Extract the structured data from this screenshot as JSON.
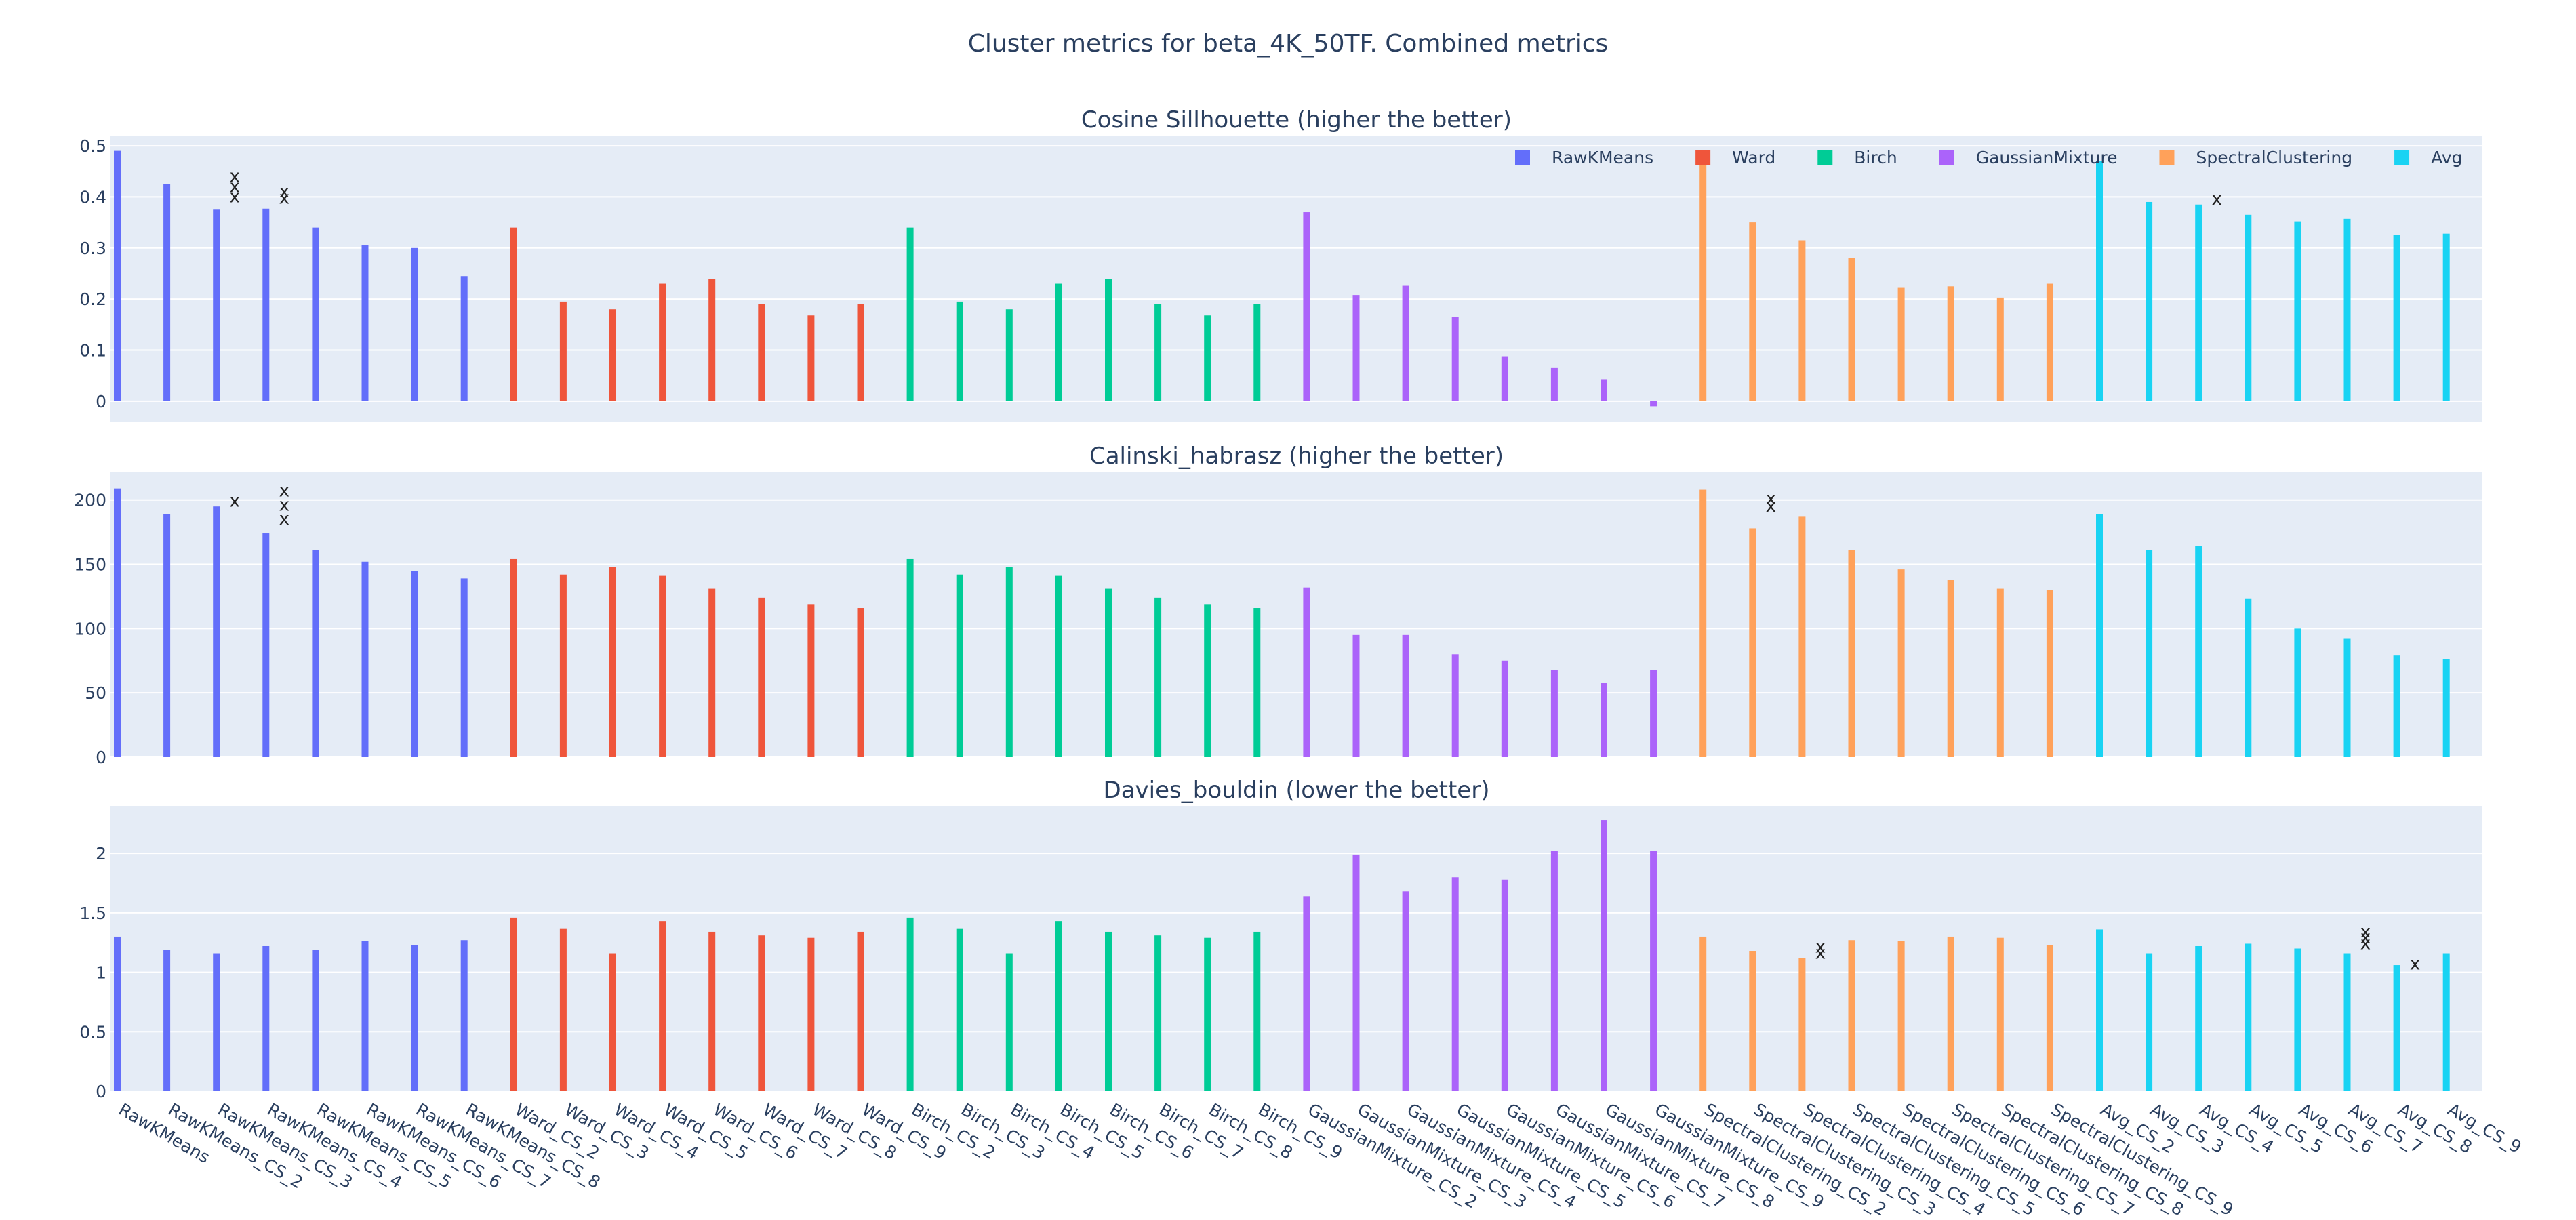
{
  "title": "Cluster metrics for beta_4K_50TF. Combined metrics",
  "chart_data": {
    "type": "bar",
    "legend_placement": "top-right",
    "grid": true,
    "categories": [
      "RawKMeans",
      "RawKMeans_CS_2",
      "RawKMeans_CS_3",
      "RawKMeans_CS_4",
      "RawKMeans_CS_5",
      "RawKMeans_CS_6",
      "RawKMeans_CS_7",
      "RawKMeans_CS_8",
      "Ward_CS_2",
      "Ward_CS_3",
      "Ward_CS_4",
      "Ward_CS_5",
      "Ward_CS_6",
      "Ward_CS_7",
      "Ward_CS_8",
      "Ward_CS_9",
      "Birch_CS_2",
      "Birch_CS_3",
      "Birch_CS_4",
      "Birch_CS_5",
      "Birch_CS_6",
      "Birch_CS_7",
      "Birch_CS_8",
      "Birch_CS_9",
      "GaussianMixture_CS_2",
      "GaussianMixture_CS_3",
      "GaussianMixture_CS_4",
      "GaussianMixture_CS_5",
      "GaussianMixture_CS_6",
      "GaussianMixture_CS_7",
      "GaussianMixture_CS_8",
      "GaussianMixture_CS_9",
      "SpectralClustering_CS_2",
      "SpectralClustering_CS_3",
      "SpectralClustering_CS_4",
      "SpectralClustering_CS_5",
      "SpectralClustering_CS_6",
      "SpectralClustering_CS_7",
      "SpectralClustering_CS_8",
      "SpectralClustering_CS_9",
      "Avg_CS_2",
      "Avg_CS_3",
      "Avg_CS_4",
      "Avg_CS_5",
      "Avg_CS_6",
      "Avg_CS_7",
      "Avg_CS_8",
      "Avg_CS_9"
    ],
    "series": [
      {
        "name": "RawKMeans",
        "color": "#636efa",
        "start": 0,
        "count": 8
      },
      {
        "name": "Ward",
        "color": "#ef553b",
        "start": 8,
        "count": 8
      },
      {
        "name": "Birch",
        "color": "#00cc96",
        "start": 16,
        "count": 8
      },
      {
        "name": "GaussianMixture",
        "color": "#ab63fa",
        "start": 24,
        "count": 8
      },
      {
        "name": "SpectralClustering",
        "color": "#ffa15a",
        "start": 32,
        "count": 8
      },
      {
        "name": "Avg",
        "color": "#19d3f3",
        "start": 40,
        "count": 8
      }
    ],
    "marker_symbol": "x",
    "subplots": [
      {
        "title": "Cosine Sillhouette (higher the better)",
        "ylim": [
          -0.04,
          0.52
        ],
        "yticks": [
          0,
          0.1,
          0.2,
          0.3,
          0.4,
          0.5
        ],
        "ytick_labels": [
          "0",
          "0.1",
          "0.2",
          "0.3",
          "0.4",
          "0.5"
        ],
        "values": [
          0.49,
          0.425,
          0.375,
          0.377,
          0.34,
          0.305,
          0.3,
          0.245,
          0.34,
          0.195,
          0.18,
          0.23,
          0.24,
          0.19,
          0.168,
          0.19,
          0.34,
          0.195,
          0.18,
          0.23,
          0.24,
          0.19,
          0.168,
          0.19,
          0.37,
          0.208,
          0.226,
          0.165,
          0.088,
          0.065,
          0.043,
          -0.01,
          0.485,
          0.35,
          0.315,
          0.28,
          0.222,
          0.225,
          0.203,
          0.23,
          0.47,
          0.39,
          0.385,
          0.365,
          0.352,
          0.357,
          0.325,
          0.328
        ],
        "markers": [
          {
            "index": 2,
            "values": [
              0.44,
              0.42,
              0.4
            ]
          },
          {
            "index": 3,
            "values": [
              0.41,
              0.397
            ]
          },
          {
            "index": 42,
            "values": [
              0.395
            ]
          }
        ]
      },
      {
        "title": "Calinski_habrasz (higher the better)",
        "ylim": [
          0,
          222
        ],
        "yticks": [
          0,
          50,
          100,
          150,
          200
        ],
        "ytick_labels": [
          "0",
          "50",
          "100",
          "150",
          "200"
        ],
        "values": [
          209,
          189,
          195,
          174,
          161,
          152,
          145,
          139,
          154,
          142,
          148,
          141,
          131,
          124,
          119,
          116,
          154,
          142,
          148,
          141,
          131,
          124,
          119,
          116,
          132,
          95,
          95,
          80,
          75,
          68,
          58,
          68,
          208,
          178,
          187,
          161,
          146,
          138,
          131,
          130,
          189,
          161,
          164,
          123,
          100,
          92,
          79,
          76
        ],
        "markers": [
          {
            "index": 2,
            "values": [
              199
            ]
          },
          {
            "index": 3,
            "values": [
              207,
              196,
              185
            ]
          },
          {
            "index": 33,
            "values": [
              201,
              195
            ]
          }
        ]
      },
      {
        "title": "Davies_bouldin (lower the better)",
        "ylim": [
          0,
          2.4
        ],
        "yticks": [
          0,
          0.5,
          1,
          1.5,
          2
        ],
        "ytick_labels": [
          "0",
          "0.5",
          "1",
          "1.5",
          "2"
        ],
        "values": [
          1.3,
          1.19,
          1.16,
          1.22,
          1.19,
          1.26,
          1.23,
          1.27,
          1.46,
          1.37,
          1.16,
          1.43,
          1.34,
          1.31,
          1.29,
          1.34,
          1.46,
          1.37,
          1.16,
          1.43,
          1.34,
          1.31,
          1.29,
          1.34,
          1.64,
          1.99,
          1.68,
          1.8,
          1.78,
          2.02,
          2.28,
          2.02,
          1.3,
          1.18,
          1.12,
          1.27,
          1.26,
          1.3,
          1.29,
          1.23,
          1.36,
          1.16,
          1.22,
          1.24,
          1.2,
          1.16,
          1.06,
          1.16
        ],
        "markers": [
          {
            "index": 34,
            "values": [
              1.21,
              1.16
            ]
          },
          {
            "index": 45,
            "values": [
              1.34,
              1.29,
              1.24
            ]
          },
          {
            "index": 46,
            "values": [
              1.07
            ]
          }
        ]
      }
    ]
  }
}
